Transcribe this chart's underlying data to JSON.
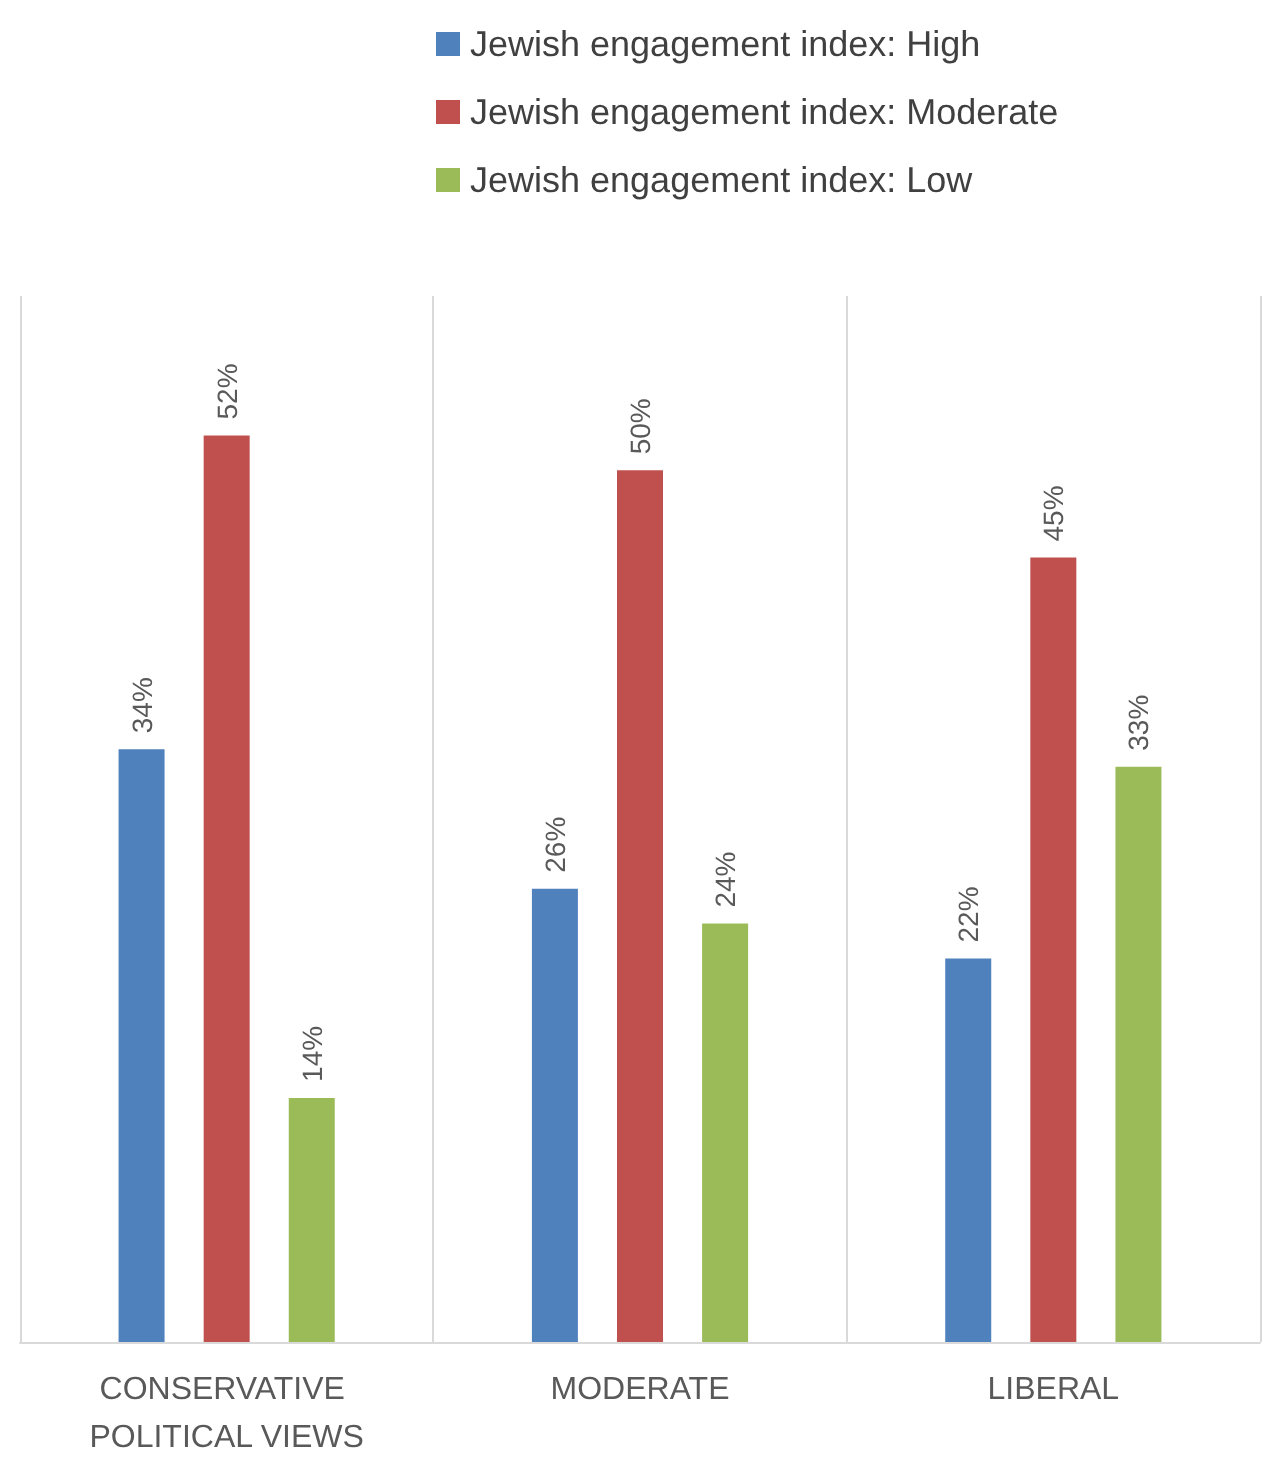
{
  "chart_data": {
    "type": "bar",
    "categories": [
      "CONSERVATIVE POLITICAL VIEWS",
      "MODERATE",
      "LIBERAL"
    ],
    "series": [
      {
        "name": "Jewish engagement index: High",
        "color": "#4f81bd",
        "values": [
          34,
          26,
          22
        ],
        "value_labels": [
          "34%",
          "26%",
          "22%"
        ]
      },
      {
        "name": "Jewish engagement index: Moderate",
        "color": "#c0504d",
        "values": [
          52,
          50,
          45
        ],
        "value_labels": [
          "52%",
          "50%",
          "45%"
        ]
      },
      {
        "name": "Jewish engagement index: Low",
        "color": "#9bbb59",
        "values": [
          14,
          24,
          33
        ],
        "value_labels": [
          "14%",
          "24%",
          "33%"
        ]
      }
    ],
    "legend": "top",
    "grid": "x"
  }
}
